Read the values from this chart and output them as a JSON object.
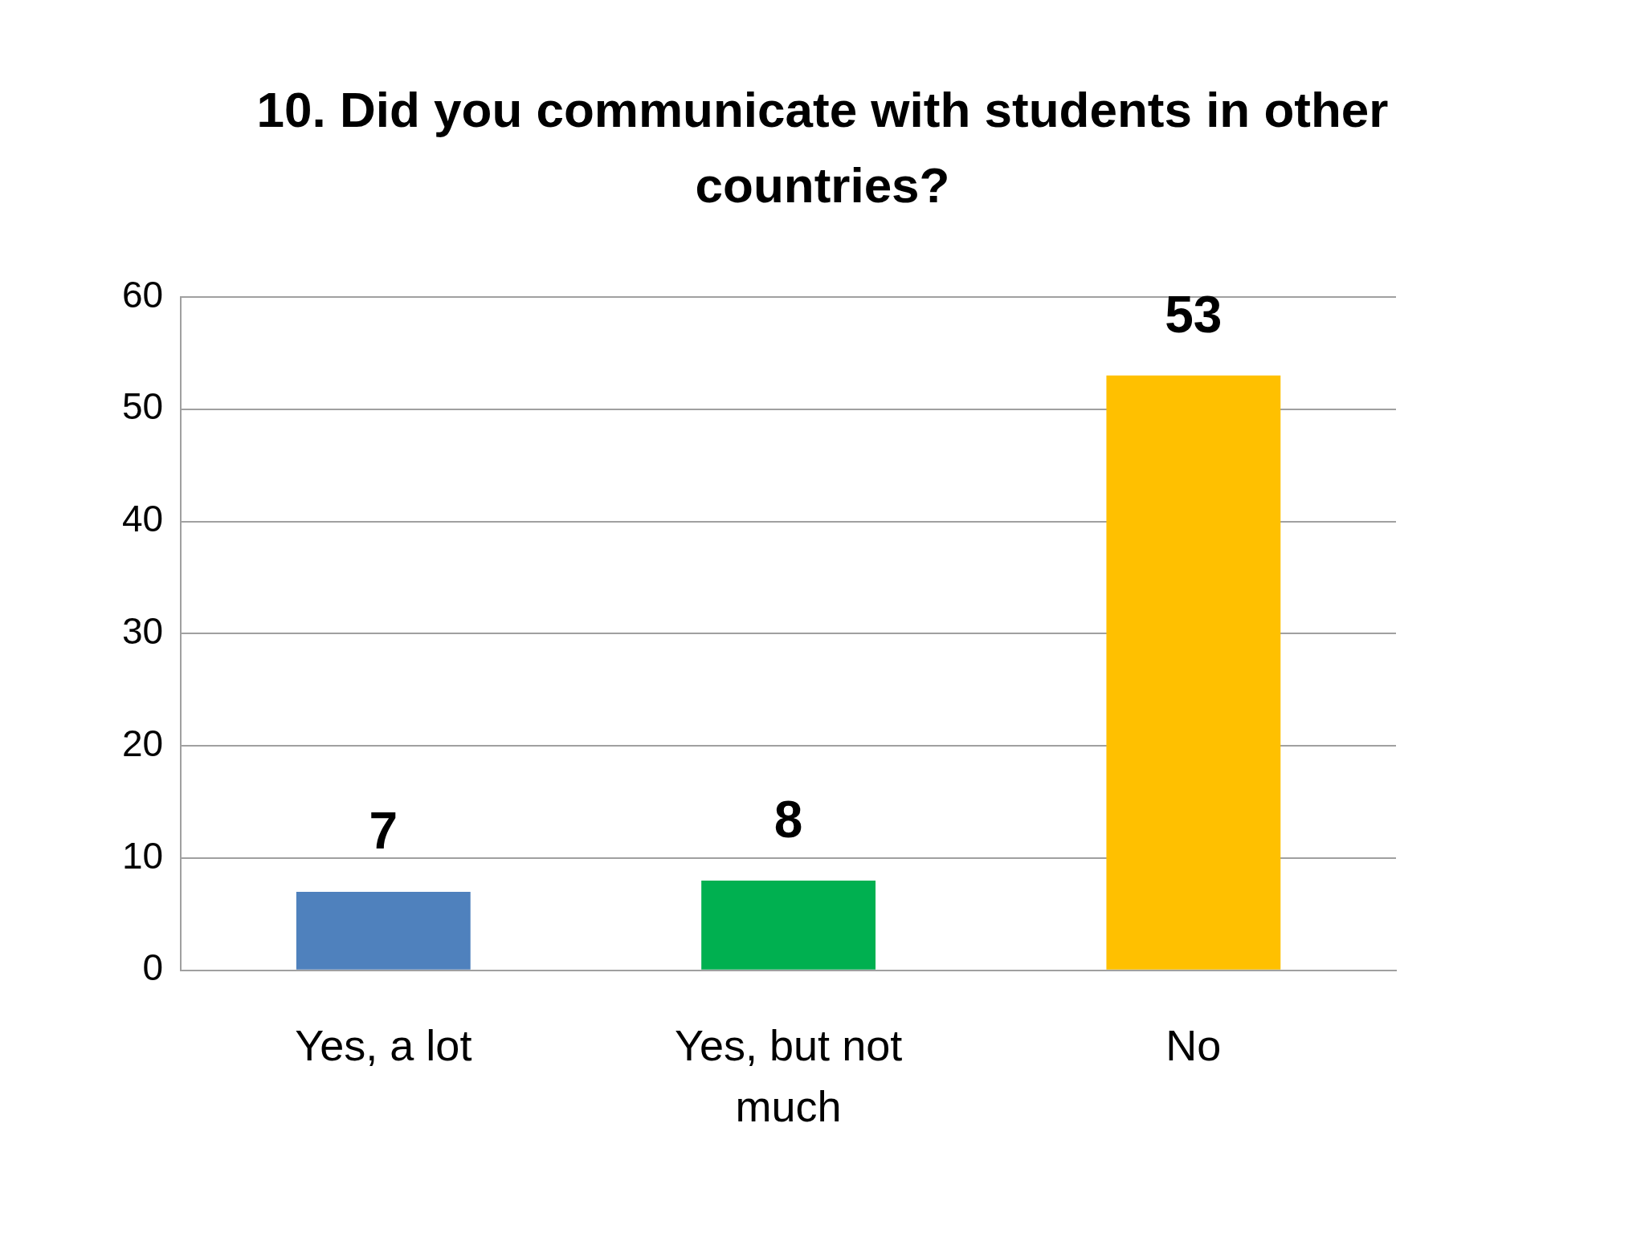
{
  "chart_data": {
    "type": "bar",
    "title": "10. Did you communicate with students in other countries?",
    "categories": [
      "Yes, a lot",
      "Yes, but not much",
      "No"
    ],
    "values": [
      7,
      8,
      53
    ],
    "colors": [
      "#4f81bd",
      "#00b050",
      "#ffc000"
    ],
    "ylim": [
      0,
      60
    ],
    "yticks": [
      0,
      10,
      20,
      30,
      40,
      50,
      60
    ],
    "grid": "y",
    "data_labels": true
  }
}
